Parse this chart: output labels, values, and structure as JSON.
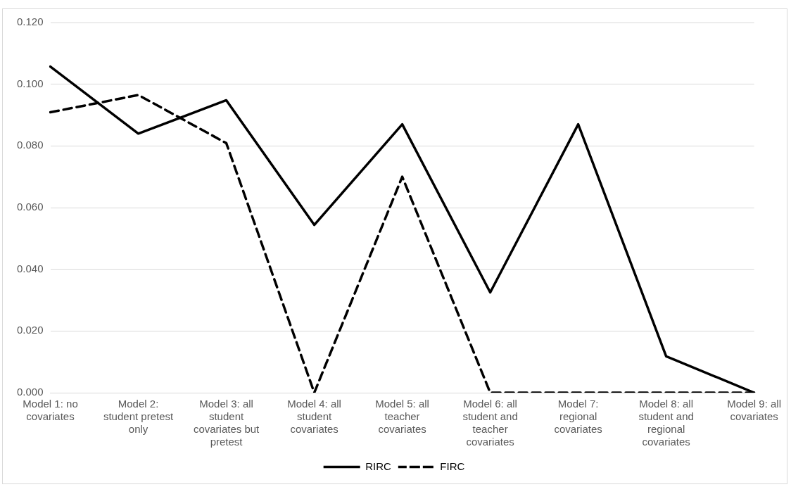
{
  "chart_data": {
    "type": "line",
    "categories": [
      "Model 1: no covariates",
      "Model 2: student pretest only",
      "Model 3: all student covariates but pretest",
      "Model 4: all student covariates",
      "Model 5: all teacher covariates",
      "Model 6: all student and teacher covariates",
      "Model 7: regional covariates",
      "Model 8: all student and regional covariates",
      "Model 9: all covariates"
    ],
    "series": [
      {
        "name": "RIRC",
        "color": "#000000",
        "line_style": "solid",
        "values": [
          0.1057,
          0.084,
          0.0948,
          0.0544,
          0.087,
          0.0325,
          0.087,
          0.0118,
          0
        ]
      },
      {
        "name": "FIRC",
        "color": "#000000",
        "line_style": "dashed",
        "values": [
          0.0909,
          0.0965,
          0.0809,
          0,
          0.07,
          0,
          0,
          0,
          0
        ]
      }
    ],
    "ylim": [
      0,
      0.12
    ],
    "yticks": [
      {
        "value": 0,
        "label": "0.000"
      },
      {
        "value": 0.02,
        "label": "0.020"
      },
      {
        "value": 0.04,
        "label": "0.040"
      },
      {
        "value": 0.06,
        "label": "0.060"
      },
      {
        "value": 0.08,
        "label": "0.080"
      },
      {
        "value": 0.1,
        "label": "0.100"
      },
      {
        "value": 0.12,
        "label": "0.120"
      }
    ],
    "grid": "y",
    "legend": "bottom",
    "marker": "none"
  }
}
